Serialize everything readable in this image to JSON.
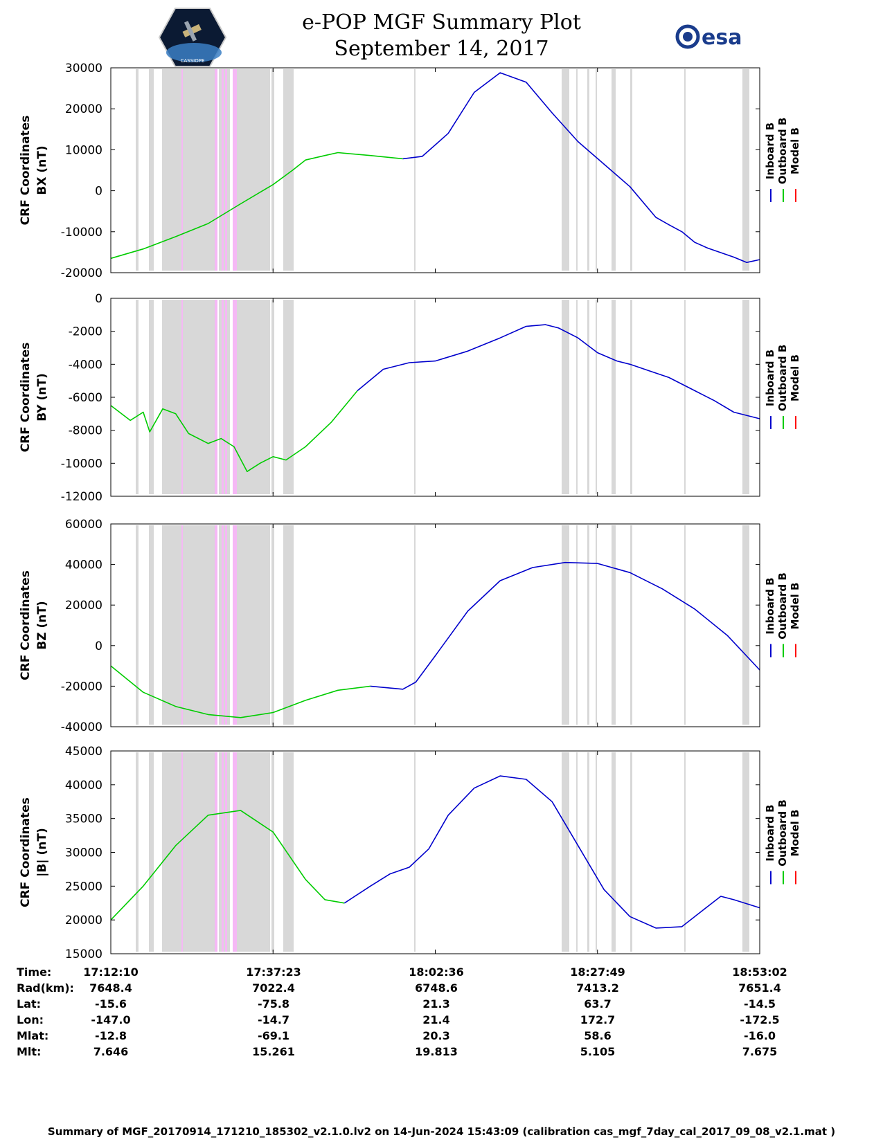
{
  "header": {
    "title": "e-POP MGF Summary Plot",
    "date": "September 14, 2017",
    "logo_left": "CASSIOPE",
    "logo_right": "esa"
  },
  "colors": {
    "inboard": "#0000cc",
    "outboard": "#00cc00",
    "model": "#ff0000",
    "band_gray": "#d8d8d8",
    "band_pink": "#f5b8f5"
  },
  "legend": {
    "inboard": "Inboard B",
    "outboard": "Outboard B",
    "model": "Model B"
  },
  "chart_data": [
    {
      "type": "line",
      "id": "bx",
      "ylabel_line1": "CRF Coordinates",
      "ylabel_line2": "BX (nT)",
      "ylim": [
        -20000,
        30000
      ],
      "yticks": [
        -20000,
        -10000,
        0,
        10000,
        20000,
        30000
      ],
      "ytick_labels": [
        "-20000",
        "-10000",
        "0",
        "10000",
        "20000",
        "30000"
      ],
      "series": [
        {
          "name": "Outboard B",
          "points": [
            [
              0,
              -16500
            ],
            [
              0.05,
              -14200
            ],
            [
              0.1,
              -11200
            ],
            [
              0.15,
              -8000
            ],
            [
              0.2,
              -3200
            ],
            [
              0.25,
              1500
            ],
            [
              0.28,
              5000
            ],
            [
              0.3,
              7500
            ],
            [
              0.33,
              8600
            ],
            [
              0.35,
              9300
            ],
            [
              0.4,
              8600
            ],
            [
              0.45,
              7800
            ]
          ]
        },
        {
          "name": "Inboard B",
          "points": [
            [
              0.45,
              7800
            ],
            [
              0.48,
              8400
            ],
            [
              0.52,
              14000
            ],
            [
              0.56,
              24000
            ],
            [
              0.6,
              28800
            ],
            [
              0.64,
              26500
            ],
            [
              0.68,
              19000
            ],
            [
              0.72,
              12000
            ],
            [
              0.76,
              6500
            ],
            [
              0.8,
              1000
            ],
            [
              0.84,
              -6500
            ],
            [
              0.86,
              -8300
            ],
            [
              0.88,
              -10000
            ],
            [
              0.9,
              -12600
            ],
            [
              0.92,
              -14000
            ],
            [
              0.96,
              -16200
            ],
            [
              0.98,
              -17500
            ],
            [
              1.0,
              -16800
            ]
          ]
        }
      ]
    },
    {
      "type": "line",
      "id": "by",
      "ylabel_line1": "CRF Coordinates",
      "ylabel_line2": "BY (nT)",
      "ylim": [
        -12000,
        0
      ],
      "yticks": [
        -12000,
        -10000,
        -8000,
        -6000,
        -4000,
        -2000,
        0
      ],
      "ytick_labels": [
        "-12000",
        "-10000",
        "-8000",
        "-6000",
        "-4000",
        "-2000",
        "0"
      ],
      "series": [
        {
          "name": "Outboard B",
          "points": [
            [
              0,
              -6500
            ],
            [
              0.03,
              -7400
            ],
            [
              0.05,
              -6900
            ],
            [
              0.06,
              -8100
            ],
            [
              0.08,
              -6700
            ],
            [
              0.1,
              -7000
            ],
            [
              0.12,
              -8200
            ],
            [
              0.15,
              -8800
            ],
            [
              0.17,
              -8500
            ],
            [
              0.19,
              -9000
            ],
            [
              0.21,
              -10500
            ],
            [
              0.23,
              -10000
            ],
            [
              0.25,
              -9600
            ],
            [
              0.27,
              -9800
            ],
            [
              0.3,
              -9000
            ],
            [
              0.34,
              -7500
            ],
            [
              0.38,
              -5600
            ]
          ]
        },
        {
          "name": "Inboard B",
          "points": [
            [
              0.38,
              -5600
            ],
            [
              0.42,
              -4300
            ],
            [
              0.46,
              -3900
            ],
            [
              0.5,
              -3800
            ],
            [
              0.55,
              -3200
            ],
            [
              0.6,
              -2400
            ],
            [
              0.64,
              -1700
            ],
            [
              0.67,
              -1600
            ],
            [
              0.69,
              -1800
            ],
            [
              0.72,
              -2400
            ],
            [
              0.75,
              -3300
            ],
            [
              0.78,
              -3800
            ],
            [
              0.8,
              -4000
            ],
            [
              0.83,
              -4400
            ],
            [
              0.86,
              -4800
            ],
            [
              0.9,
              -5600
            ],
            [
              0.93,
              -6200
            ],
            [
              0.96,
              -6900
            ],
            [
              1.0,
              -7300
            ]
          ]
        }
      ]
    },
    {
      "type": "line",
      "id": "bz",
      "ylabel_line1": "CRF Coordinates",
      "ylabel_line2": "BZ (nT)",
      "ylim": [
        -40000,
        60000
      ],
      "yticks": [
        -40000,
        -20000,
        0,
        20000,
        40000,
        60000
      ],
      "ytick_labels": [
        "-40000",
        "-20000",
        "0",
        "20000",
        "40000",
        "60000"
      ],
      "series": [
        {
          "name": "Outboard B",
          "points": [
            [
              0,
              -10000
            ],
            [
              0.05,
              -23000
            ],
            [
              0.1,
              -30000
            ],
            [
              0.15,
              -34000
            ],
            [
              0.2,
              -35500
            ],
            [
              0.25,
              -33000
            ],
            [
              0.3,
              -27000
            ],
            [
              0.35,
              -22000
            ],
            [
              0.4,
              -20000
            ]
          ]
        },
        {
          "name": "Inboard B",
          "points": [
            [
              0.4,
              -20000
            ],
            [
              0.45,
              -21500
            ],
            [
              0.47,
              -18000
            ],
            [
              0.5,
              -5000
            ],
            [
              0.55,
              17000
            ],
            [
              0.6,
              32000
            ],
            [
              0.65,
              38500
            ],
            [
              0.7,
              41000
            ],
            [
              0.75,
              40500
            ],
            [
              0.8,
              36000
            ],
            [
              0.85,
              28000
            ],
            [
              0.9,
              18000
            ],
            [
              0.95,
              5000
            ],
            [
              1.0,
              -12000
            ]
          ]
        }
      ]
    },
    {
      "type": "line",
      "id": "bmag",
      "ylabel_line1": "CRF Coordinates",
      "ylabel_line2": "|B| (nT)",
      "ylim": [
        15000,
        45000
      ],
      "yticks": [
        15000,
        20000,
        25000,
        30000,
        35000,
        40000,
        45000
      ],
      "ytick_labels": [
        "15000",
        "20000",
        "25000",
        "30000",
        "35000",
        "40000",
        "45000"
      ],
      "series": [
        {
          "name": "Outboard B",
          "points": [
            [
              0,
              20000
            ],
            [
              0.05,
              25000
            ],
            [
              0.1,
              31000
            ],
            [
              0.15,
              35500
            ],
            [
              0.2,
              36200
            ],
            [
              0.25,
              33000
            ],
            [
              0.3,
              26000
            ],
            [
              0.33,
              23000
            ],
            [
              0.36,
              22500
            ]
          ]
        },
        {
          "name": "Inboard B",
          "points": [
            [
              0.36,
              22500
            ],
            [
              0.4,
              25000
            ],
            [
              0.43,
              26800
            ],
            [
              0.46,
              27800
            ],
            [
              0.49,
              30500
            ],
            [
              0.52,
              35500
            ],
            [
              0.56,
              39500
            ],
            [
              0.6,
              41300
            ],
            [
              0.64,
              40800
            ],
            [
              0.68,
              37500
            ],
            [
              0.72,
              31000
            ],
            [
              0.76,
              24500
            ],
            [
              0.8,
              20500
            ],
            [
              0.84,
              18800
            ],
            [
              0.88,
              19000
            ],
            [
              0.92,
              22000
            ],
            [
              0.94,
              23500
            ],
            [
              0.96,
              23000
            ],
            [
              1.0,
              21800
            ]
          ]
        }
      ]
    }
  ],
  "bands_gray": [
    [
      0.16,
      0.17
    ],
    [
      0.2,
      0.21
    ],
    [
      0.25,
      0.32
    ],
    [
      0.33,
      0.37
    ],
    [
      0.39,
      0.42
    ],
    [
      0.44,
      0.46
    ],
    [
      0.47,
      0.48
    ],
    [
      0.51,
      0.54
    ],
    [
      0.55,
      0.61
    ],
    [
      0.62,
      0.66
    ],
    [
      0.77,
      0.8
    ],
    [
      0.81,
      0.83
    ],
    [
      0.84,
      0.86
    ],
    [
      0.88,
      0.89
    ],
    [
      1.88,
      1.89
    ]
  ],
  "xaxis": {
    "tick_labels": [
      "17:12:10",
      "17:37:23",
      "18:02:36",
      "18:27:49",
      "18:53:02"
    ]
  },
  "ephemeris": {
    "labels": [
      "Time:",
      "Rad(km):",
      "Lat:",
      "Lon:",
      "Mlat:",
      "Mlt:"
    ],
    "time": [
      "17:12:10",
      "17:37:23",
      "18:02:36",
      "18:27:49",
      "18:53:02"
    ],
    "rad": [
      "7648.4",
      "7022.4",
      "6748.6",
      "7413.2",
      "7651.4"
    ],
    "lat": [
      "-15.6",
      "-75.8",
      "21.3",
      "63.7",
      "-14.5"
    ],
    "lon": [
      "-147.0",
      "-14.7",
      "21.4",
      "172.7",
      "-172.5"
    ],
    "mlat": [
      "-12.8",
      "-69.1",
      "20.3",
      "58.6",
      "-16.0"
    ],
    "mlt": [
      "7.646",
      "15.261",
      "19.813",
      "5.105",
      "7.675"
    ]
  },
  "footer": "Summary of MGF_20170914_171210_185302_v2.1.0.lv2 on 14-Jun-2024 15:43:09 (calibration cas_mgf_7day_cal_2017_09_08_v2.1.mat )"
}
